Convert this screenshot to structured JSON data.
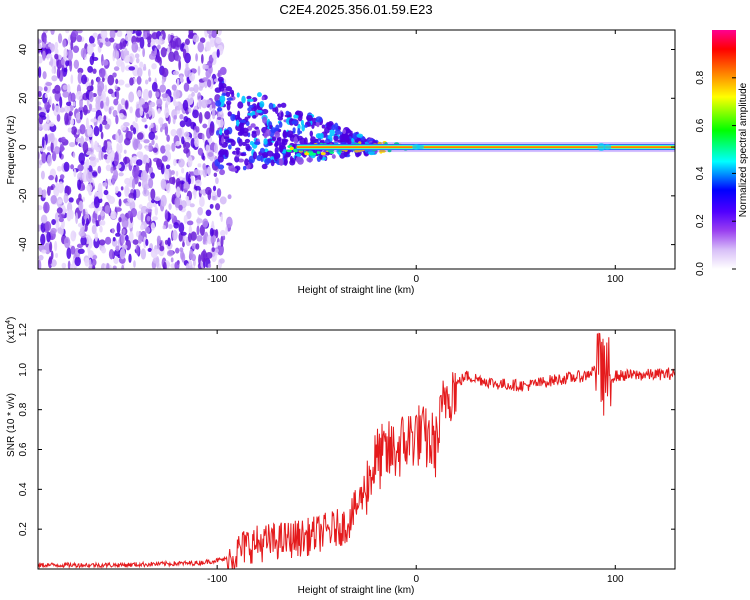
{
  "title": "C2E4.2025.356.01.59.E23",
  "colors": {
    "noise_purple": "#6a1fd8",
    "snr_line": "#e41a1c",
    "frame": "#000000"
  },
  "chart_data": [
    {
      "type": "heatmap",
      "name": "spectrogram",
      "xlabel": "Height of straight line (km)",
      "ylabel": "Frequency (Hz)",
      "xlim": [
        -190,
        130
      ],
      "ylim": [
        -50,
        48
      ],
      "xticks": [
        -100,
        0,
        100
      ],
      "xtick_labels": [
        "-100",
        "0",
        "100"
      ],
      "yticks": [
        -40,
        -20,
        0,
        20,
        40
      ],
      "ytick_labels": [
        "-40",
        "-20",
        "0",
        "20",
        "40"
      ],
      "carrier_frequency_hz": 0,
      "carrier_start_km": -60,
      "noise_region_km": [
        -190,
        -95
      ],
      "colorbar": {
        "label": "Normalized spectral amplitude",
        "range": [
          0,
          1
        ],
        "ticks": [
          0.0,
          0.2,
          0.4,
          0.6,
          0.8
        ],
        "tick_labels": [
          "0.0",
          "0.2",
          "0.4",
          "0.6",
          "0.8"
        ],
        "colors": [
          "#ffffff",
          "#b27ff0",
          "#7a00ff",
          "#0000ff",
          "#00ffff",
          "#00ff00",
          "#ffff00",
          "#ff8000",
          "#ff0000",
          "#ff0090"
        ]
      }
    },
    {
      "type": "line",
      "name": "snr",
      "xlabel": "Height of straight line (km)",
      "ylabel": "SNR (10 * v/v)",
      "y_multiplier_label": "(x10",
      "y_multiplier_exp": "4",
      "y_multiplier_close": ")",
      "xlim": [
        -190,
        130
      ],
      "ylim": [
        0,
        1.2
      ],
      "xticks": [
        -100,
        0,
        100
      ],
      "xtick_labels": [
        "-100",
        "0",
        "100"
      ],
      "yticks": [
        0.2,
        0.4,
        0.6,
        0.8,
        1.0,
        1.2
      ],
      "ytick_labels": [
        "0.2",
        "0.4",
        "0.6",
        "0.8",
        "1.0",
        "1.2"
      ],
      "series_name": "SNR",
      "keypoints_km": [
        -190,
        -150,
        -110,
        -95,
        -85,
        -70,
        -55,
        -35,
        -28,
        -20,
        -10,
        0,
        10,
        15,
        25,
        40,
        55,
        70,
        85,
        92,
        96,
        100,
        130
      ],
      "keypoints_snr": [
        0.02,
        0.02,
        0.03,
        0.05,
        0.12,
        0.14,
        0.16,
        0.22,
        0.35,
        0.55,
        0.6,
        0.68,
        0.62,
        0.88,
        0.97,
        0.93,
        0.92,
        0.95,
        0.97,
        1.02,
        0.95,
        0.97,
        0.98
      ]
    }
  ]
}
